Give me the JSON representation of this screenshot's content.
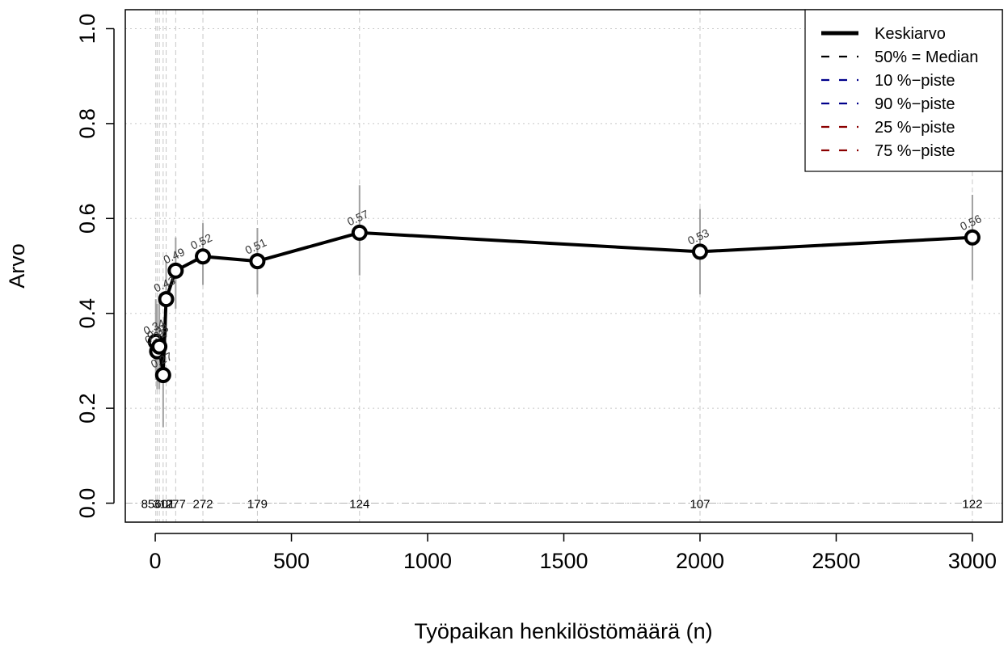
{
  "chart_data": {
    "type": "line",
    "xlabel": "Työpaikan henkilöstömäärä (n)",
    "ylabel": "Arvo",
    "xlim": [
      -110,
      3110
    ],
    "ylim": [
      -0.04,
      1.04
    ],
    "x_ticks": [
      0,
      500,
      1000,
      1500,
      2000,
      2500,
      3000
    ],
    "x_tick_labels": [
      "0",
      "500",
      "1000",
      "1500",
      "2000",
      "2500",
      "3000"
    ],
    "y_ticks": [
      0.0,
      0.2,
      0.4,
      0.6,
      0.8,
      1.0
    ],
    "y_tick_labels": [
      "0.0",
      "0.2",
      "0.4",
      "0.6",
      "0.8",
      "1.0"
    ],
    "grid": true,
    "legend_position": "top-right",
    "legend": [
      {
        "label": "Keskiarvo",
        "color": "#000000",
        "style": "solid"
      },
      {
        "label": "50% = Median",
        "color": "#000000",
        "style": "dashed"
      },
      {
        "label": "10 %−piste",
        "color": "#00008b",
        "style": "dashed"
      },
      {
        "label": "90 %−piste",
        "color": "#00008b",
        "style": "dashed"
      },
      {
        "label": "25 %−piste",
        "color": "#8b0000",
        "style": "dashed"
      },
      {
        "label": "75 %−piste",
        "color": "#8b0000",
        "style": "dashed"
      }
    ],
    "series": [
      {
        "name": "Keskiarvo",
        "color": "#000000",
        "points": [
          {
            "x": 2,
            "y": 0.34,
            "label": "0.34",
            "n": "85",
            "low": 0.26,
            "high": 0.43
          },
          {
            "x": 7,
            "y": 0.32,
            "label": "0.32",
            "n": "601",
            "low": 0.24,
            "high": 0.42
          },
          {
            "x": 15,
            "y": 0.33,
            "label": "0.33",
            "n": "601",
            "low": 0.24,
            "high": 0.43
          },
          {
            "x": 29,
            "y": 0.27,
            "label": "0.27",
            "n": "317",
            "low": 0.16,
            "high": 0.38
          },
          {
            "x": 40,
            "y": 0.43,
            "label": "0.43",
            "n": "277",
            "low": 0.35,
            "high": 0.51
          },
          {
            "x": 75,
            "y": 0.49,
            "label": "0.49",
            "n": "277",
            "low": 0.41,
            "high": 0.56
          },
          {
            "x": 175,
            "y": 0.52,
            "label": "0.52",
            "n": "272",
            "low": 0.46,
            "high": 0.59
          },
          {
            "x": 375,
            "y": 0.51,
            "label": "0.51",
            "n": "179",
            "low": 0.44,
            "high": 0.58
          },
          {
            "x": 750,
            "y": 0.57,
            "label": "0.57",
            "n": "124",
            "low": 0.48,
            "high": 0.67
          },
          {
            "x": 2000,
            "y": 0.53,
            "label": "0.53",
            "n": "107",
            "low": 0.44,
            "high": 0.62
          },
          {
            "x": 3000,
            "y": 0.56,
            "label": "0.56",
            "n": "122",
            "low": 0.47,
            "high": 0.65
          }
        ]
      }
    ],
    "count_labels": [
      {
        "x": 10,
        "text": "85601"
      },
      {
        "x": 29,
        "text": "317"
      },
      {
        "x": 75,
        "text": "277"
      },
      {
        "x": 175,
        "text": "272"
      },
      {
        "x": 375,
        "text": "179"
      },
      {
        "x": 750,
        "text": "124"
      },
      {
        "x": 2000,
        "text": "107"
      },
      {
        "x": 3000,
        "text": "122"
      }
    ],
    "colors": {
      "mean": "#000000",
      "range": "#a0a0a0",
      "grid": "#c8c8c8"
    }
  }
}
